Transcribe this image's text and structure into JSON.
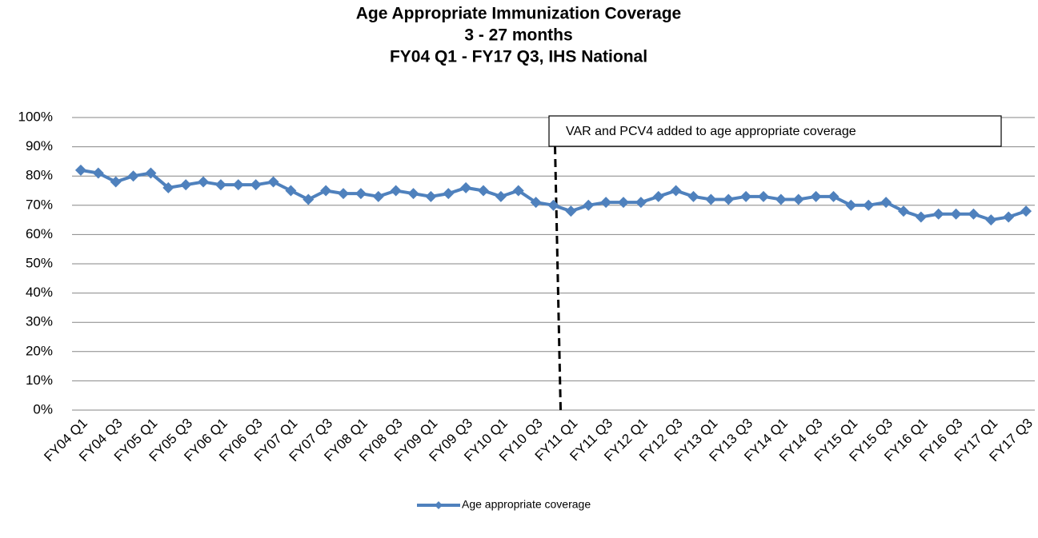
{
  "chart_data": {
    "type": "line",
    "title": [
      "Age Appropriate Immunization Coverage",
      "3 - 27 months",
      "FY04 Q1 - FY17 Q3, IHS National"
    ],
    "categories": [
      "FY04 Q1",
      null,
      "FY04 Q3",
      null,
      "FY05 Q1",
      null,
      "FY05 Q3",
      null,
      "FY06 Q1",
      null,
      "FY06 Q3",
      null,
      "FY07 Q1",
      null,
      "FY07 Q3",
      null,
      "FY08 Q1",
      null,
      "FY08 Q3",
      null,
      "FY09 Q1",
      null,
      "FY09 Q3",
      null,
      "FY10 Q1",
      null,
      "FY10 Q3",
      null,
      "FY11 Q1",
      null,
      "FY11 Q3",
      null,
      "FY12 Q1",
      null,
      "FY12 Q3",
      null,
      "FY13 Q1",
      null,
      "FY13 Q3",
      null,
      "FY14 Q1",
      null,
      "FY14 Q3",
      null,
      "FY15 Q1",
      null,
      "FY15 Q3",
      null,
      "FY16 Q1",
      null,
      "FY16 Q3",
      null,
      "FY17 Q1",
      null,
      "FY17 Q3"
    ],
    "series": [
      {
        "name": "Age appropriate coverage",
        "color": "#4f81bd",
        "values": [
          82,
          81,
          78,
          80,
          81,
          76,
          77,
          78,
          77,
          77,
          77,
          78,
          75,
          72,
          75,
          74,
          74,
          73,
          75,
          74,
          73,
          74,
          76,
          75,
          73,
          75,
          71,
          70,
          68,
          70,
          71,
          71,
          71,
          73,
          75,
          73,
          72,
          72,
          73,
          73,
          72,
          72,
          73,
          73,
          70,
          70,
          71,
          68,
          66,
          67,
          67,
          67,
          65,
          66,
          68
        ]
      }
    ],
    "ylim": [
      0,
      100
    ],
    "yticks": [
      {
        "value": 0,
        "label": "0%"
      },
      {
        "value": 10,
        "label": "10%"
      },
      {
        "value": 20,
        "label": "20%"
      },
      {
        "value": 30,
        "label": "30%"
      },
      {
        "value": 40,
        "label": "40%"
      },
      {
        "value": 50,
        "label": "50%"
      },
      {
        "value": 60,
        "label": "60%"
      },
      {
        "value": 70,
        "label": "70%"
      },
      {
        "value": 80,
        "label": "80%"
      },
      {
        "value": 90,
        "label": "90%"
      },
      {
        "value": 100,
        "label": "100%"
      }
    ],
    "grid": true,
    "legend": "bottom",
    "annotation": "VAR and PCV4 added to age appropriate coverage"
  }
}
